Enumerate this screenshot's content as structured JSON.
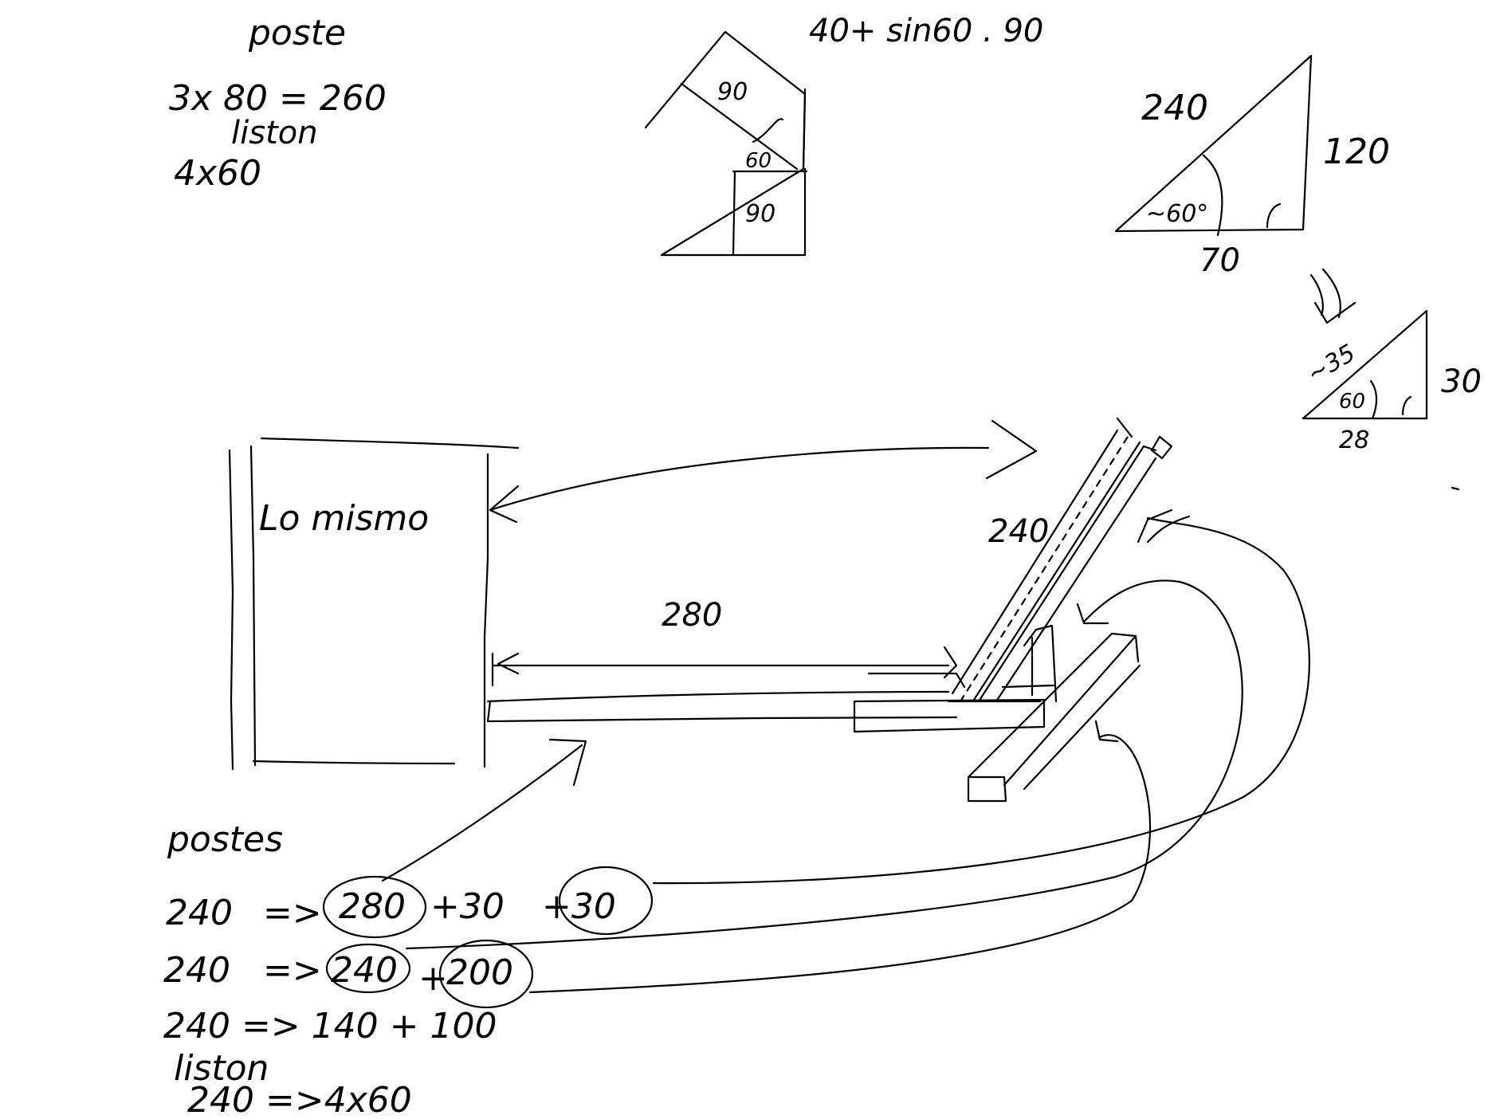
{
  "notes": {
    "poste_title": "poste",
    "poste_calc": "3x 80 = 260",
    "liston_label": "liston",
    "liston_calc": "4x60",
    "formula": "40+ sin60 . 90",
    "corner_90_top": "90",
    "corner_60": "60",
    "corner_90_bottom": "90",
    "tri1_hyp": "240",
    "tri1_side": "120",
    "tri1_angle": "~60°",
    "tri1_base": "70",
    "tri2_hyp": "~35",
    "tri2_angle": "60",
    "tri2_side": "30",
    "tri2_base": "28",
    "lo_mismo": "Lo mismo",
    "dim_240": "240",
    "dim_280": "280",
    "postes_title": "postes",
    "line1": [
      "240",
      "=>",
      "280",
      "+30",
      "+30"
    ],
    "line2": [
      "240",
      "=>",
      "240",
      "+",
      "200"
    ],
    "line3": "240 => 140 + 100",
    "liston2_label": "liston",
    "line4": "240 =>4x60"
  }
}
